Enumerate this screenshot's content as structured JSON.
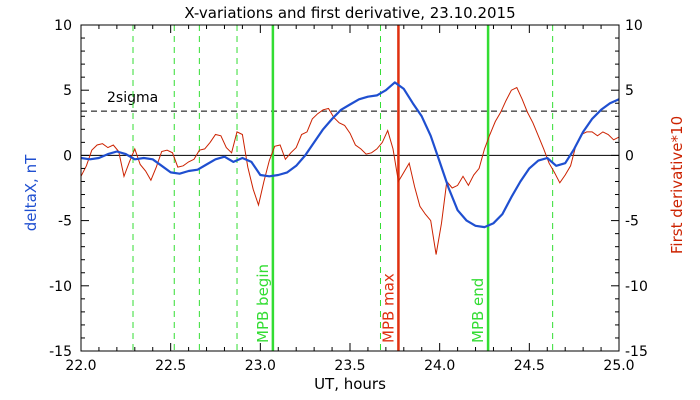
{
  "chart_data": {
    "type": "line",
    "title": "X-variations and first derivative, 23.10.2015",
    "xlabel": "UT, hours",
    "ylabel_left": "deltaX, nT",
    "ylabel_right": "First derivative*10",
    "xlim": [
      22.0,
      25.0
    ],
    "ylim": [
      -15,
      10
    ],
    "x_ticks": [
      22.0,
      22.5,
      23.0,
      23.5,
      24.0,
      24.5,
      25.0
    ],
    "x_tick_labels": [
      "22.0",
      "22.5",
      "23.0",
      "23.5",
      "24.0",
      "24.5",
      "25.0"
    ],
    "y_ticks": [
      10,
      5,
      0,
      -5,
      -10,
      -15
    ],
    "y_tick_labels_left": [
      "10",
      "5",
      "0",
      "-5",
      "-10",
      "-15"
    ],
    "y_tick_labels_right": [
      "10",
      "5",
      "0",
      "-5",
      "-10",
      "-15"
    ],
    "colors": {
      "deltaX": "#1f4fd0",
      "derivative": "#cc2200",
      "green": "#33dd33",
      "red_marker": "#e03010",
      "ylabel_left": "#1f4fd0",
      "ylabel_right": "#cc2200"
    },
    "sigma_level": 3.4,
    "sigma_label": "2sigma",
    "dashed_green_x": [
      22.29,
      22.52,
      22.66,
      22.87,
      23.67,
      24.63
    ],
    "markers": [
      {
        "x": 23.07,
        "label": "MPB begin",
        "color": "#33dd33"
      },
      {
        "x": 23.77,
        "label": "MPB max",
        "color": "#e03010"
      },
      {
        "x": 24.27,
        "label": "MPB end",
        "color": "#33dd33"
      }
    ],
    "series": [
      {
        "key": "deltaX",
        "x": [
          22.0,
          22.05,
          22.1,
          22.15,
          22.2,
          22.25,
          22.3,
          22.35,
          22.4,
          22.45,
          22.5,
          22.55,
          22.6,
          22.65,
          22.7,
          22.75,
          22.8,
          22.85,
          22.9,
          22.95,
          23.0,
          23.05,
          23.1,
          23.15,
          23.2,
          23.25,
          23.3,
          23.35,
          23.4,
          23.45,
          23.5,
          23.55,
          23.6,
          23.65,
          23.7,
          23.75,
          23.8,
          23.85,
          23.9,
          23.95,
          24.0,
          24.05,
          24.1,
          24.15,
          24.2,
          24.25,
          24.3,
          24.35,
          24.4,
          24.45,
          24.5,
          24.55,
          24.6,
          24.65,
          24.7,
          24.75,
          24.8,
          24.85,
          24.9,
          24.95,
          25.0
        ],
        "values": [
          -0.2,
          -0.3,
          -0.2,
          0.1,
          0.3,
          0.1,
          -0.3,
          -0.2,
          -0.3,
          -0.8,
          -1.3,
          -1.4,
          -1.2,
          -1.1,
          -0.7,
          -0.3,
          -0.1,
          -0.5,
          -0.2,
          -0.5,
          -1.5,
          -1.6,
          -1.5,
          -1.3,
          -0.8,
          0.0,
          1.0,
          2.0,
          2.8,
          3.5,
          3.9,
          4.3,
          4.5,
          4.6,
          5.0,
          5.6,
          5.1,
          4.0,
          3.0,
          1.5,
          -0.5,
          -2.5,
          -4.2,
          -5.0,
          -5.4,
          -5.5,
          -5.2,
          -4.5,
          -3.2,
          -2.0,
          -1.0,
          -0.4,
          -0.2,
          -0.8,
          -0.6,
          0.5,
          1.8,
          2.8,
          3.5,
          4.0,
          4.3
        ]
      },
      {
        "key": "derivative",
        "x": [
          22.0,
          22.03,
          22.06,
          22.09,
          22.12,
          22.15,
          22.18,
          22.21,
          22.24,
          22.27,
          22.3,
          22.33,
          22.36,
          22.39,
          22.42,
          22.45,
          22.48,
          22.51,
          22.54,
          22.57,
          22.6,
          22.63,
          22.66,
          22.69,
          22.72,
          22.75,
          22.78,
          22.81,
          22.84,
          22.87,
          22.9,
          22.93,
          22.96,
          22.99,
          23.02,
          23.05,
          23.08,
          23.11,
          23.14,
          23.17,
          23.2,
          23.23,
          23.26,
          23.29,
          23.32,
          23.35,
          23.38,
          23.41,
          23.44,
          23.47,
          23.5,
          23.53,
          23.56,
          23.59,
          23.62,
          23.65,
          23.68,
          23.71,
          23.74,
          23.77,
          23.8,
          23.83,
          23.86,
          23.89,
          23.92,
          23.95,
          23.98,
          24.01,
          24.04,
          24.07,
          24.1,
          24.13,
          24.16,
          24.19,
          24.22,
          24.25,
          24.28,
          24.31,
          24.34,
          24.37,
          24.4,
          24.43,
          24.46,
          24.49,
          24.52,
          24.55,
          24.58,
          24.61,
          24.64,
          24.67,
          24.7,
          24.73,
          24.76,
          24.79,
          24.82,
          24.85,
          24.88,
          24.91,
          24.94,
          24.97,
          25.0
        ],
        "values": [
          -1.6,
          -0.8,
          0.4,
          0.8,
          0.9,
          0.6,
          0.8,
          0.3,
          -1.6,
          -0.5,
          0.5,
          -0.7,
          -1.2,
          -1.9,
          -0.9,
          0.3,
          0.4,
          0.2,
          -0.9,
          -0.8,
          -0.5,
          -0.3,
          0.4,
          0.5,
          1.0,
          1.6,
          1.5,
          0.6,
          0.2,
          1.8,
          1.6,
          -0.9,
          -2.6,
          -3.8,
          -2.0,
          -0.4,
          0.7,
          0.8,
          -0.3,
          0.2,
          0.6,
          1.6,
          1.8,
          2.8,
          3.2,
          3.5,
          3.6,
          2.9,
          2.5,
          2.3,
          1.7,
          0.8,
          0.5,
          0.1,
          0.2,
          0.5,
          1.0,
          1.9,
          0.5,
          -2.0,
          -1.3,
          -0.6,
          -2.4,
          -3.9,
          -4.5,
          -5.0,
          -7.6,
          -5.2,
          -2.0,
          -2.5,
          -2.3,
          -1.6,
          -2.3,
          -1.5,
          -1.0,
          0.5,
          1.6,
          2.6,
          3.3,
          4.2,
          5.0,
          5.2,
          4.3,
          3.3,
          2.5,
          1.5,
          0.5,
          -0.6,
          -1.3,
          -2.1,
          -1.5,
          -0.8,
          0.8,
          1.6,
          1.8,
          1.8,
          1.5,
          1.8,
          1.6,
          1.2,
          1.4
        ]
      }
    ]
  }
}
